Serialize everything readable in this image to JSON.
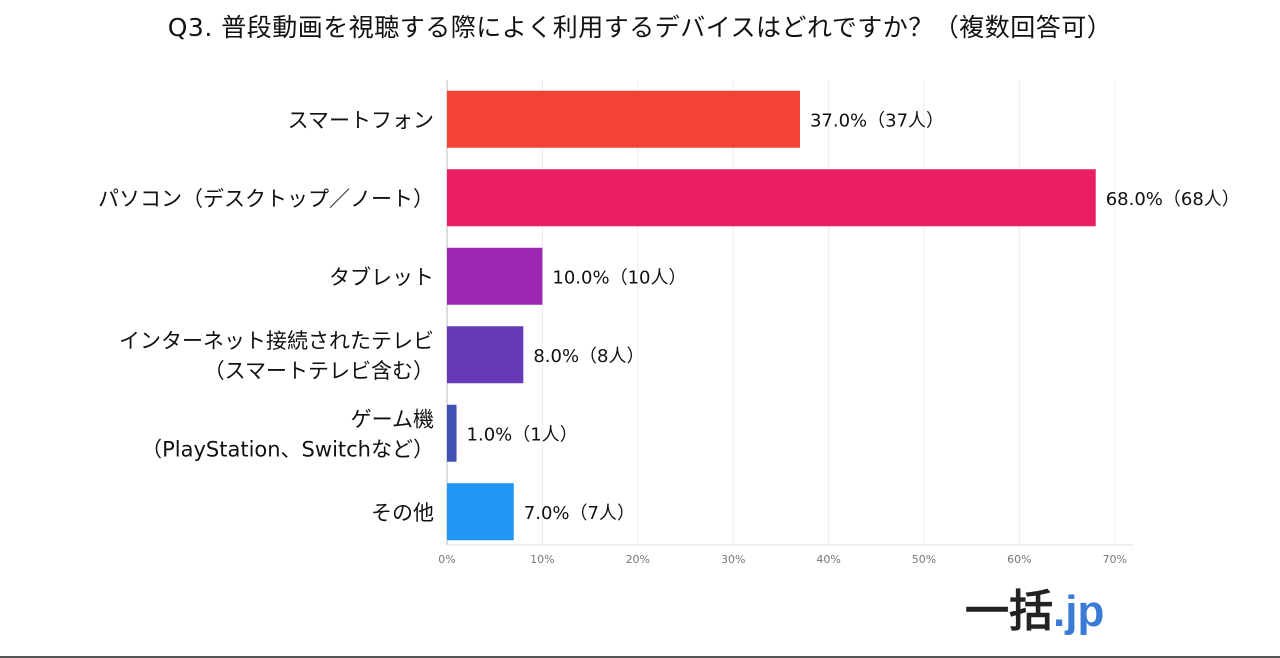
{
  "chart_data": {
    "type": "bar",
    "orientation": "horizontal",
    "title": "Q3. 普段動画を視聴する際によく利用するデバイスはどれですか？（複数回答可）",
    "xlabel": "",
    "ylabel": "",
    "xlim": [
      0,
      72
    ],
    "xticks": [
      0,
      10,
      20,
      30,
      40,
      50,
      60,
      70
    ],
    "xtick_labels": [
      "0%",
      "10%",
      "20%",
      "30%",
      "40%",
      "50%",
      "60%",
      "70%"
    ],
    "grid": true,
    "legend": "none",
    "categories": [
      [
        "スマートフォン"
      ],
      [
        "パソコン（デスクトップ／ノート）"
      ],
      [
        "タブレット"
      ],
      [
        "インターネット接続されたテレビ",
        "（スマートテレビ含む）"
      ],
      [
        "ゲーム機",
        "（PlayStation、Switchなど）"
      ],
      [
        "その他"
      ]
    ],
    "values": [
      37.0,
      68.0,
      10.0,
      8.0,
      1.0,
      7.0
    ],
    "counts": [
      37,
      68,
      10,
      8,
      1,
      7
    ],
    "data_labels": [
      "37.0%（37人）",
      "68.0%（68人）",
      "10.0%（10人）",
      "8.0%（8人）",
      "1.0%（1人）",
      "7.0%（7人）"
    ],
    "colors": [
      "#f44336",
      "#e91e63",
      "#9c27b0",
      "#673ab7",
      "#3f51b5",
      "#2196f3"
    ]
  },
  "logo": {
    "kanji": "一括",
    "suffix": ".jp"
  }
}
